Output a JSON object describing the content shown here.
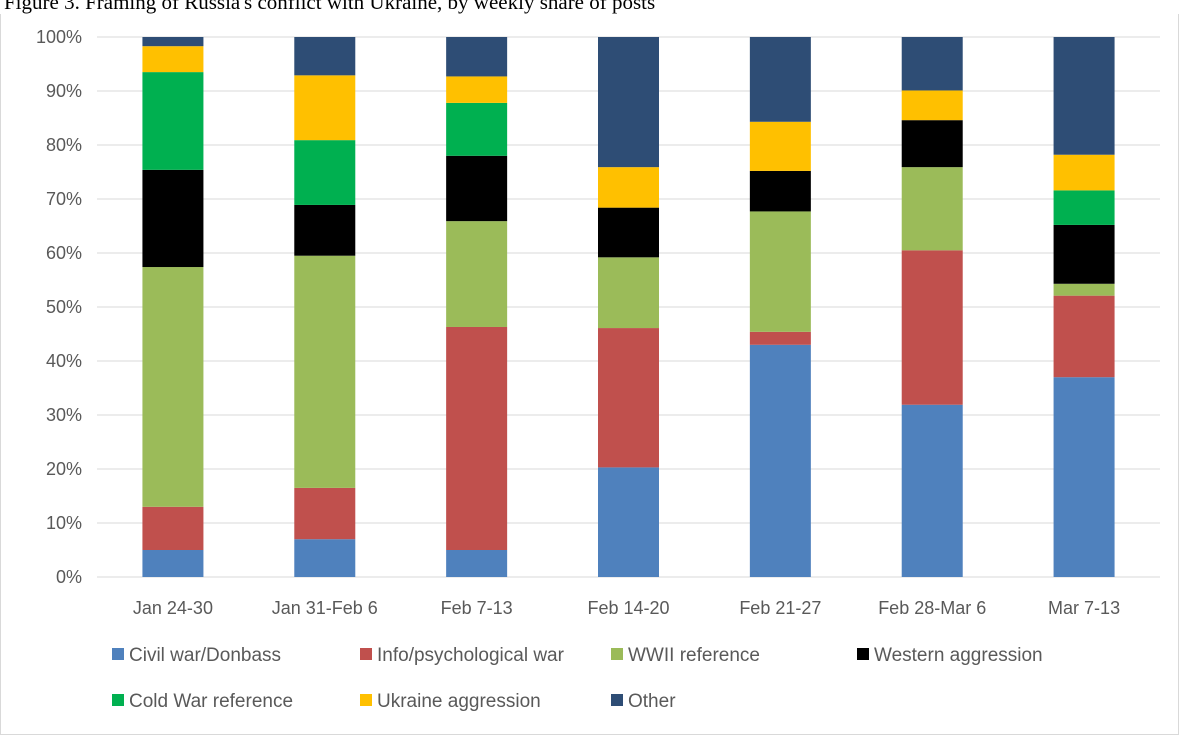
{
  "caption": "Figure 3. Framing of Russia's conflict with Ukraine, by weekly share of posts",
  "chart_data": {
    "type": "bar",
    "stacked": true,
    "percent": true,
    "categories": [
      "Jan 24-30",
      "Jan 31-Feb 6",
      "Feb 7-13",
      "Feb 14-20",
      "Feb 21-27",
      "Feb 28-Mar 6",
      "Mar 7-13"
    ],
    "ylim": [
      0,
      100
    ],
    "yticks": [
      0,
      10,
      20,
      30,
      40,
      50,
      60,
      70,
      80,
      90,
      100
    ],
    "ytick_labels": [
      "0%",
      "10%",
      "20%",
      "30%",
      "40%",
      "50%",
      "60%",
      "70%",
      "80%",
      "90%",
      "100%"
    ],
    "grid": true,
    "legend_position": "bottom",
    "series": [
      {
        "name": "Civil war/Donbass",
        "color": "#4f81bd",
        "values": [
          5,
          7,
          5,
          20.3,
          43,
          31.9,
          37
        ]
      },
      {
        "name": "Info/psychological war",
        "color": "#c0504d",
        "values": [
          8,
          9.5,
          41.3,
          25.8,
          2.4,
          28.6,
          15.1
        ]
      },
      {
        "name": "WWII reference",
        "color": "#9bbb59",
        "values": [
          44.4,
          43,
          19.6,
          13.1,
          22.3,
          15.4,
          2.2
        ]
      },
      {
        "name": "Western aggression",
        "color": "#000000",
        "values": [
          18,
          9.4,
          12.1,
          9.2,
          7.5,
          8.7,
          10.9
        ]
      },
      {
        "name": "Cold War reference",
        "color": "#00b050",
        "values": [
          18.1,
          12,
          9.8,
          0,
          0,
          0,
          6.4
        ]
      },
      {
        "name": "Ukraine aggression",
        "color": "#ffc000",
        "values": [
          4.8,
          12,
          4.9,
          7.5,
          9.1,
          5.5,
          6.6
        ]
      },
      {
        "name": "Other",
        "color": "#2e4d75",
        "values": [
          1.7,
          7.1,
          7.3,
          24.1,
          15.7,
          9.9,
          21.8
        ]
      }
    ]
  }
}
